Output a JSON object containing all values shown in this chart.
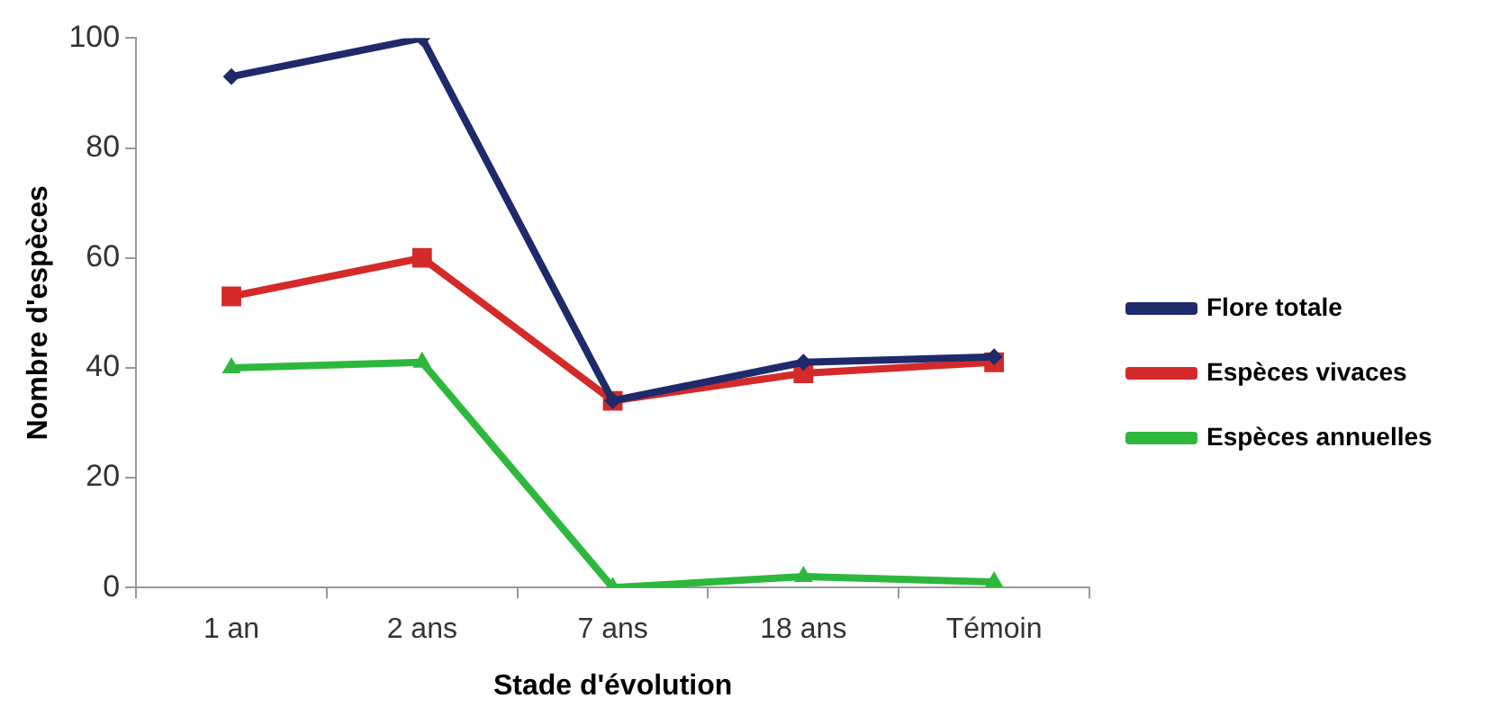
{
  "chart_data": {
    "type": "line",
    "xlabel": "Stade d'évolution",
    "ylabel": "Nombre d'espèces",
    "categories": [
      "1 an",
      "2 ans",
      "7 ans",
      "18 ans",
      "Témoin"
    ],
    "series": [
      {
        "name": "Flore totale",
        "color": "#1f2a6b",
        "marker": "diamond",
        "values": [
          93,
          100,
          34,
          41,
          42
        ]
      },
      {
        "name": "Espèces vivaces",
        "color": "#d42a2a",
        "marker": "square",
        "values": [
          53,
          60,
          34,
          39,
          41
        ]
      },
      {
        "name": "Espèces annuelles",
        "color": "#2db83d",
        "marker": "triangle",
        "values": [
          40,
          41,
          0,
          2,
          1
        ]
      }
    ],
    "ylim": [
      0,
      100
    ],
    "yticks": [
      0,
      20,
      40,
      60,
      80,
      100
    ],
    "grid": false,
    "legend": "right",
    "line_style": "solid"
  }
}
